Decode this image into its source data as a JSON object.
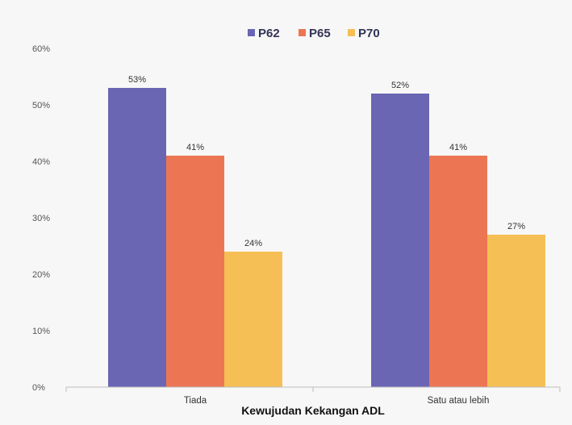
{
  "chart_data": {
    "type": "bar",
    "categories": [
      "Tiada",
      "Satu atau lebih"
    ],
    "series": [
      {
        "name": "P62",
        "values": [
          53,
          52
        ],
        "labels": [
          "53%",
          "52%"
        ],
        "color": "#6a66b3"
      },
      {
        "name": "P65",
        "values": [
          41,
          41
        ],
        "labels": [
          "41%",
          "41%"
        ],
        "color": "#ec7653"
      },
      {
        "name": "P70",
        "values": [
          24,
          27
        ],
        "labels": [
          "24%",
          "27%"
        ],
        "color": "#f6bf55"
      }
    ],
    "title": "",
    "xlabel": "Kewujudan Kekangan ADL",
    "ylabel": "",
    "ylim": [
      0,
      60
    ],
    "yticks": [
      0,
      10,
      20,
      30,
      40,
      50,
      60
    ],
    "ytick_labels": [
      "0%",
      "10%",
      "20%",
      "30%",
      "40%",
      "50%",
      "60%"
    ],
    "grid": false,
    "legend_position": "top-center",
    "background": "#f7f7f7",
    "axis_color": "#bdbdbd"
  }
}
